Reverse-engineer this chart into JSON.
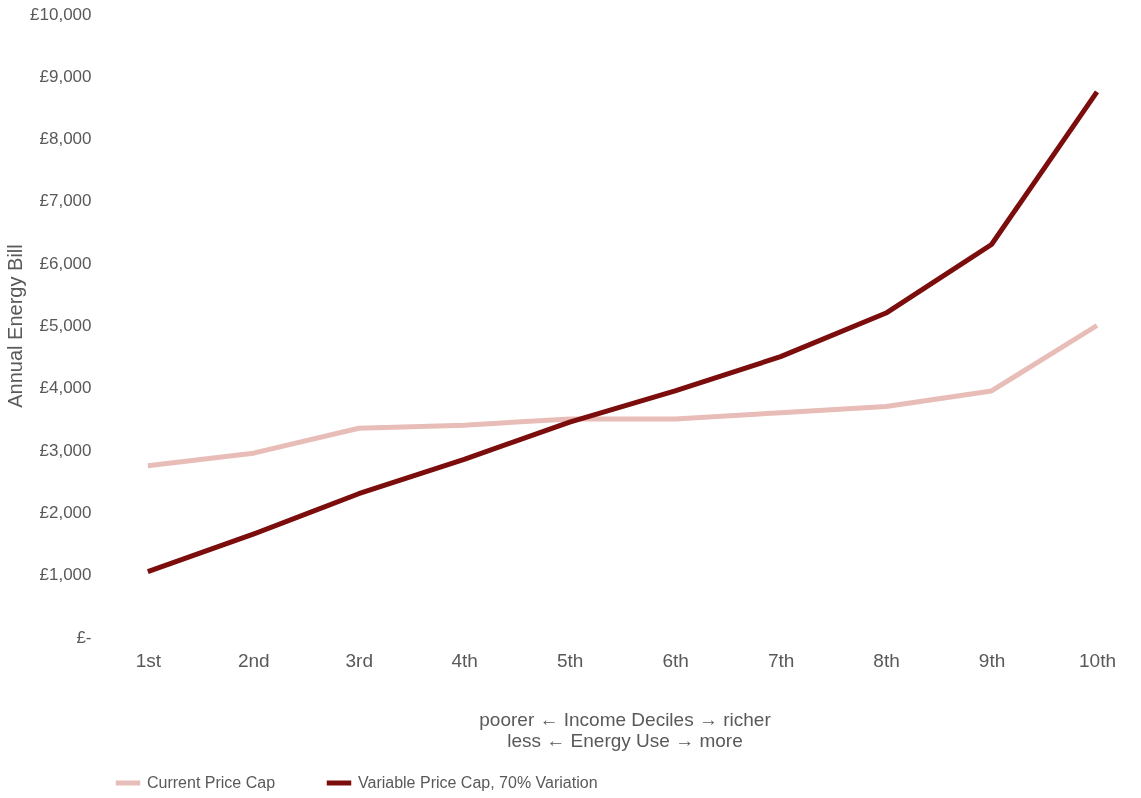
{
  "chart_data": {
    "type": "line",
    "ylabel": "Annual Energy Bill",
    "categories": [
      "1st",
      "2nd",
      "3rd",
      "4th",
      "5th",
      "6th",
      "7th",
      "8th",
      "9th",
      "10th"
    ],
    "series": [
      {
        "name": "Current Price Cap",
        "color": "#e8bdb8",
        "values": [
          2750,
          2950,
          3350,
          3400,
          3500,
          3500,
          3600,
          3700,
          3950,
          5000
        ]
      },
      {
        "name": "Variable Price Cap, 70% Variation",
        "color": "#7b0d0d",
        "values": [
          1050,
          1650,
          2300,
          2850,
          3450,
          3950,
          4500,
          5200,
          6300,
          8750
        ]
      }
    ],
    "ylim": [
      0,
      10000
    ],
    "yticks": [
      {
        "value": 0,
        "label": "£-"
      },
      {
        "value": 1000,
        "label": "£1,000"
      },
      {
        "value": 2000,
        "label": "£2,000"
      },
      {
        "value": 3000,
        "label": "£3,000"
      },
      {
        "value": 4000,
        "label": "£4,000"
      },
      {
        "value": 5000,
        "label": "£5,000"
      },
      {
        "value": 6000,
        "label": "£6,000"
      },
      {
        "value": 7000,
        "label": "£7,000"
      },
      {
        "value": 8000,
        "label": "£8,000"
      },
      {
        "value": 9000,
        "label": "£9,000"
      },
      {
        "value": 10000,
        "label": "£10,000"
      }
    ],
    "annotations": [
      "poorer ←   Income Deciles   → richer",
      "less ←   Energy Use   → more"
    ],
    "grid": false,
    "legend": "bottom",
    "marker": "none",
    "line_style": "solid"
  }
}
